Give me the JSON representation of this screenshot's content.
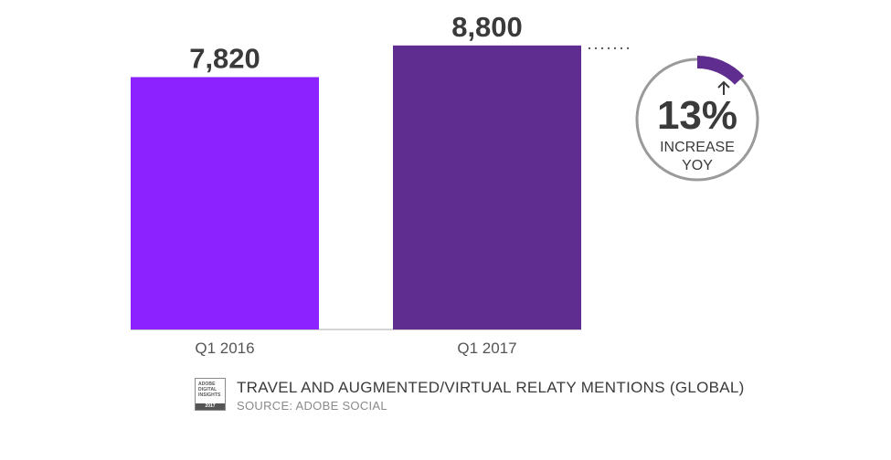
{
  "chart_data": {
    "type": "bar",
    "categories": [
      "Q1 2016",
      "Q1 2017"
    ],
    "values": [
      7820,
      8800
    ],
    "value_labels": [
      "7,820",
      "8,800"
    ],
    "colors": [
      "#8b22ff",
      "#5f2d8f"
    ],
    "title": "TRAVEL AND AUGMENTED/VIRTUAL RELATY MENTIONS (GLOBAL)",
    "source": "SOURCE: ADOBE SOCIAL",
    "ylim": [
      0,
      9700
    ],
    "grid": false,
    "annotation": {
      "value": "13%",
      "line1": "INCREASE",
      "line2": "YOY",
      "arc_color": "#5f2d8f",
      "ring_color": "#9a9a9a"
    }
  },
  "badge": {
    "text": "ADOBE\nDIGITAL\nINSIGHTS",
    "year": "2017"
  }
}
